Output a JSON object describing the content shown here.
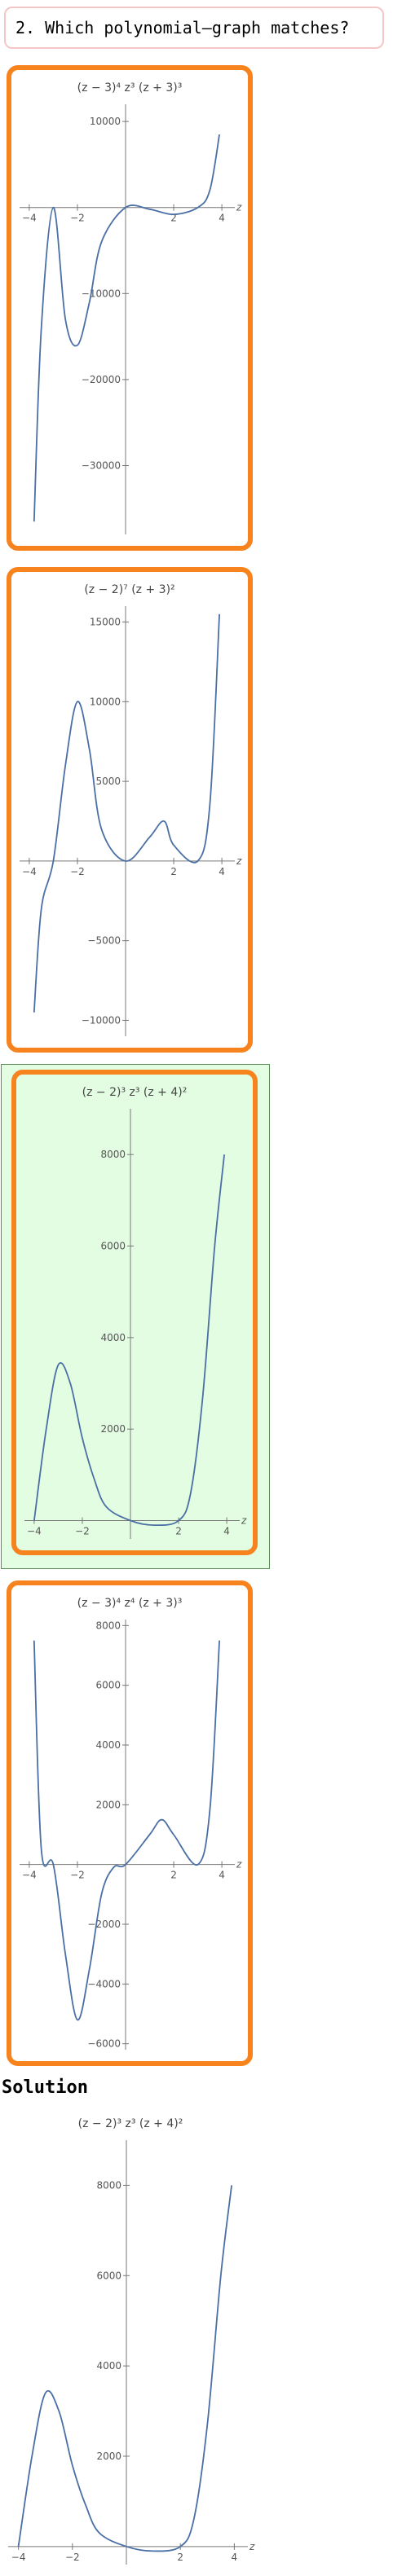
{
  "question": {
    "text": "2. Which polynomial–graph matches?"
  },
  "solution_heading": "Solution",
  "accent_color": "#f7831f",
  "selected_color": "#e3fde3",
  "curve_color": "#4a6fa5",
  "options": [
    {
      "id": "option-1",
      "title": "(z − 3)⁴ z³ (z + 3)³",
      "selected": false
    },
    {
      "id": "option-2",
      "title": "(z − 2)⁷ (z + 3)²",
      "selected": false
    },
    {
      "id": "option-3",
      "title": "(z − 2)³ z³ (z + 4)²",
      "selected": true
    },
    {
      "id": "option-4",
      "title": "(z − 3)⁴ z⁴ (z + 3)³",
      "selected": false
    }
  ],
  "chart_data": [
    {
      "type": "line",
      "title": "(z − 3)⁴ z³ (z + 3)³",
      "xlabel": "z",
      "ylabel": "",
      "xlim": [
        -4.2,
        4.2
      ],
      "ylim": [
        -38000,
        12000
      ],
      "x_ticks": [
        "−4",
        "−2",
        "2",
        "4"
      ],
      "y_ticks": [
        "10000",
        "−10000",
        "−20000",
        "−30000"
      ],
      "x": [
        -3.8,
        -3.5,
        -3.0,
        -2.5,
        -2.0,
        -1.5,
        -1.0,
        0,
        1.0,
        2.0,
        3.0,
        3.5,
        3.9
      ],
      "y": [
        -36500,
        -14000,
        0,
        -13000,
        -16000,
        -11000,
        -4000,
        0,
        -200,
        -800,
        0,
        2000,
        8500
      ]
    },
    {
      "type": "line",
      "title": "(z − 2)⁷ (z + 3)²",
      "xlabel": "z",
      "ylabel": "",
      "xlim": [
        -4.2,
        4.2
      ],
      "ylim": [
        -11000,
        16000
      ],
      "x_ticks": [
        "−4",
        "−2",
        "2",
        "4"
      ],
      "y_ticks": [
        "15000",
        "10000",
        "5000",
        "−5000",
        "−10000"
      ],
      "x": [
        -3.8,
        -3.5,
        -3.0,
        -2.5,
        -2.0,
        -1.5,
        -1.0,
        0,
        1.0,
        1.6,
        2.0,
        3.0,
        3.5,
        3.9
      ],
      "y": [
        -9500,
        -3000,
        0,
        6000,
        10000,
        7000,
        2000,
        0,
        1500,
        2500,
        1000,
        0,
        3500,
        15500
      ]
    },
    {
      "type": "line",
      "title": "(z − 2)³ z³ (z + 4)²",
      "xlabel": "z",
      "ylabel": "",
      "xlim": [
        -4.2,
        4.2
      ],
      "ylim": [
        -400,
        9000
      ],
      "x_ticks": [
        "−4",
        "−2",
        "2",
        "4"
      ],
      "y_ticks": [
        "8000",
        "6000",
        "4000",
        "2000"
      ],
      "x": [
        -4.0,
        -3.5,
        -3.0,
        -2.5,
        -2.0,
        -1.5,
        -1.0,
        0,
        1.0,
        2.0,
        2.5,
        3.0,
        3.5,
        3.9
      ],
      "y": [
        0,
        2000,
        3400,
        3000,
        1800,
        900,
        300,
        0,
        -100,
        0,
        600,
        2700,
        6000,
        8000
      ]
    },
    {
      "type": "line",
      "title": "(z − 3)⁴ z⁴ (z + 3)³",
      "xlabel": "z",
      "ylabel": "",
      "xlim": [
        -4.2,
        4.2
      ],
      "ylim": [
        -6200,
        8200
      ],
      "x_ticks": [
        "−4",
        "−2",
        "2",
        "4"
      ],
      "y_ticks": [
        "8000",
        "6000",
        "4000",
        "2000",
        "−2000",
        "−4000",
        "−6000"
      ],
      "x": [
        -3.8,
        -3.5,
        -3.0,
        -2.5,
        -2.0,
        -1.5,
        -1.0,
        -0.5,
        0,
        1.0,
        1.5,
        2.0,
        3.0,
        3.5,
        3.9
      ],
      "y": [
        7500,
        500,
        0,
        -3000,
        -5200,
        -3500,
        -1000,
        -100,
        0,
        1000,
        1500,
        1000,
        0,
        1800,
        7500
      ]
    },
    {
      "type": "line",
      "title": "(z − 2)³ z³ (z + 4)²",
      "xlabel": "z",
      "ylabel": "",
      "xlim": [
        -4.2,
        4.2
      ],
      "ylim": [
        -400,
        9000
      ],
      "x_ticks": [
        "−4",
        "−2",
        "2",
        "4"
      ],
      "y_ticks": [
        "8000",
        "6000",
        "4000",
        "2000"
      ],
      "x": [
        -4.0,
        -3.5,
        -3.0,
        -2.5,
        -2.0,
        -1.5,
        -1.0,
        0,
        1.0,
        2.0,
        2.5,
        3.0,
        3.5,
        3.9
      ],
      "y": [
        0,
        2000,
        3400,
        3000,
        1800,
        900,
        300,
        0,
        -100,
        0,
        600,
        2700,
        6000,
        8000
      ]
    }
  ]
}
